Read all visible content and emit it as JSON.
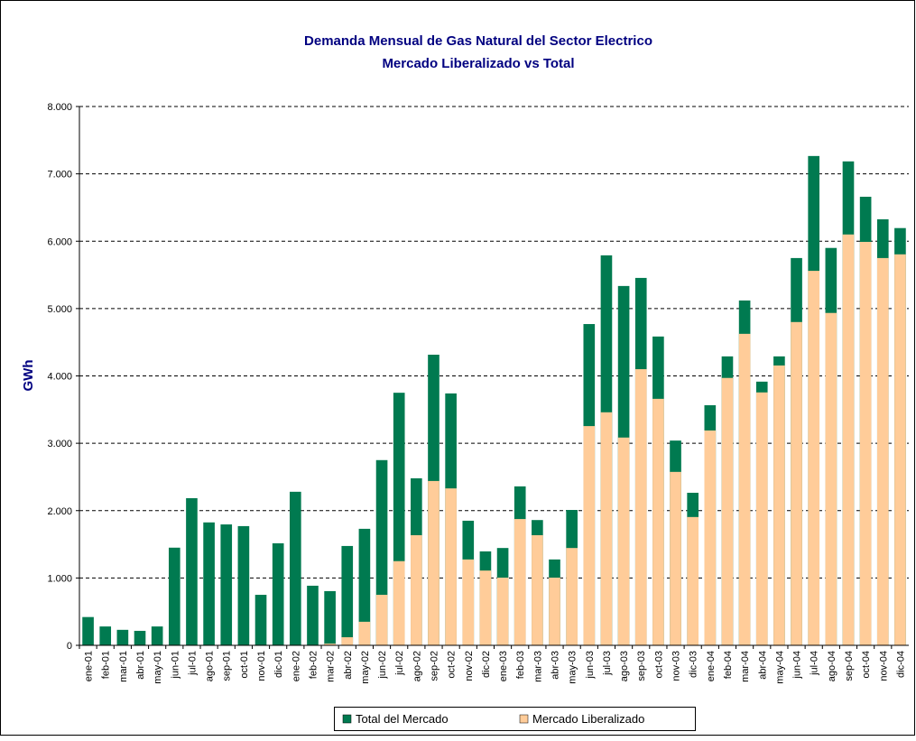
{
  "chart_data": {
    "type": "bar",
    "title": "Demanda Mensual de Gas Natural del Sector Electrico",
    "subtitle": "Mercado Liberalizado vs Total",
    "y_label": "GWh",
    "categories": [
      "ene-01",
      "feb-01",
      "mar-01",
      "abr-01",
      "may-01",
      "jun-01",
      "jul-01",
      "ago-01",
      "sep-01",
      "oct-01",
      "nov-01",
      "dic-01",
      "ene-02",
      "feb-02",
      "mar-02",
      "abr-02",
      "may-02",
      "jun-02",
      "jul-02",
      "ago-02",
      "sep-02",
      "oct-02",
      "nov-02",
      "dic-02",
      "ene-03",
      "feb-03",
      "mar-03",
      "abr-03",
      "may-03",
      "jun-03",
      "jul-03",
      "ago-03",
      "sep-03",
      "oct-03",
      "nov-03",
      "dic-03",
      "ene-04",
      "feb-04",
      "mar-04",
      "abr-04",
      "may-04",
      "jun-04",
      "jul-04",
      "ago-04",
      "sep-04",
      "oct-04",
      "nov-04",
      "dic-04"
    ],
    "series": [
      {
        "name": "Total del Mercado",
        "color": "#007a50",
        "values": [
          420,
          280,
          230,
          215,
          280,
          1450,
          2185,
          1825,
          1795,
          1770,
          750,
          1515,
          2280,
          885,
          805,
          1475,
          1730,
          2750,
          3750,
          2480,
          4315,
          3740,
          1850,
          1395,
          1445,
          2360,
          1860,
          1275,
          2010,
          4770,
          5790,
          5335,
          5455,
          4585,
          3040,
          2265,
          3565,
          4290,
          5120,
          3915,
          4290,
          5750,
          7265,
          5900,
          7185,
          6660,
          6325,
          6195
        ]
      },
      {
        "name": "Mercado Liberalizado",
        "color": "#ffcc99",
        "values": [
          0,
          0,
          0,
          0,
          0,
          0,
          0,
          0,
          0,
          0,
          0,
          0,
          0,
          0,
          25,
          120,
          350,
          750,
          1250,
          1635,
          2440,
          2330,
          1275,
          1110,
          1005,
          1875,
          1635,
          1005,
          1445,
          3255,
          3460,
          3085,
          4100,
          3660,
          2575,
          1905,
          3190,
          3970,
          4625,
          3755,
          4155,
          4800,
          5560,
          4935,
          6100,
          5990,
          5750,
          5805
        ]
      }
    ],
    "ylim": [
      0,
      8000
    ],
    "yticks": [
      0,
      {
        "value": 1000,
        "label": "1.000"
      },
      {
        "value": 2000,
        "label": "2.000"
      },
      {
        "value": 3000,
        "label": "3.000"
      },
      {
        "value": 4000,
        "label": "4.000"
      },
      {
        "value": 5000,
        "label": "5.000"
      },
      {
        "value": 6000,
        "label": "6.000"
      },
      {
        "value": 7000,
        "label": "7.000"
      },
      {
        "value": 8000,
        "label": "8.000"
      }
    ],
    "grid": true,
    "legend": "bottom"
  }
}
